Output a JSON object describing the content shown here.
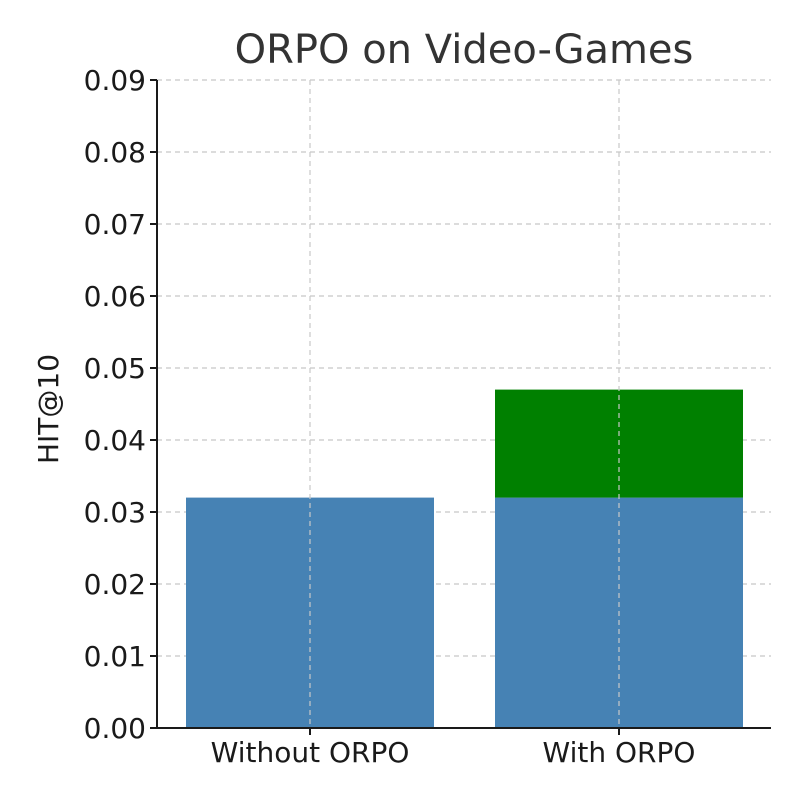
{
  "chart_data": {
    "type": "bar",
    "stacked": true,
    "title": "ORPO on Video-Games",
    "xlabel": "",
    "ylabel": "HIT@10",
    "categories": [
      "Without ORPO",
      "With ORPO"
    ],
    "series": [
      {
        "values": [
          0.032,
          0.032
        ],
        "color": "#4682b4"
      },
      {
        "values": [
          0,
          0.015
        ],
        "color": "#008000"
      }
    ],
    "ylim": [
      0,
      0.09
    ],
    "yticks": [
      "0.00",
      "0.01",
      "0.02",
      "0.03",
      "0.04",
      "0.05",
      "0.06",
      "0.07",
      "0.08",
      "0.09"
    ],
    "grid": true,
    "legend": "none"
  }
}
